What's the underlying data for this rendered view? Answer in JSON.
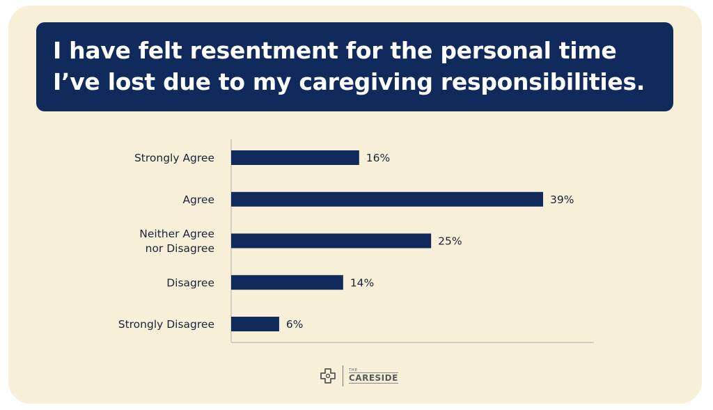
{
  "chart_data": {
    "type": "bar",
    "orientation": "horizontal",
    "title": "I have felt resentment for the personal time I’ve lost due to my caregiving responsibilities.",
    "categories": [
      "Strongly Agree",
      "Agree",
      "Neither Agree nor Disagree",
      "Disagree",
      "Strongly Disagree"
    ],
    "category_lines": [
      [
        "Strongly Agree"
      ],
      [
        "Agree"
      ],
      [
        "Neither Agree",
        "nor Disagree"
      ],
      [
        "Disagree"
      ],
      [
        "Strongly Disagree"
      ]
    ],
    "values": [
      16,
      39,
      25,
      14,
      6
    ],
    "value_labels": [
      "16%",
      "39%",
      "25%",
      "14%",
      "6%"
    ],
    "xlim": [
      0,
      45
    ],
    "grid": false,
    "colors": {
      "bar": "#102a5c",
      "background": "#f8efd9",
      "title_bg": "#102a5c"
    }
  },
  "logo": {
    "the": "THE",
    "name": "CARESIDE"
  }
}
